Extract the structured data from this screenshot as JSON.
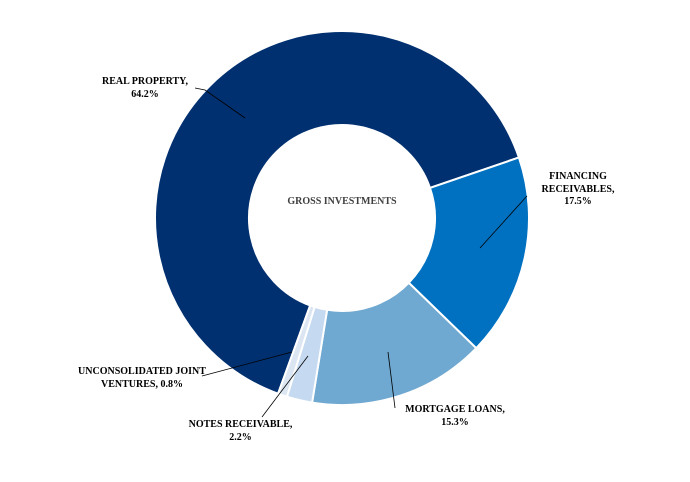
{
  "chart_data": {
    "type": "donut",
    "center_label": "GROSS INVESTMENTS",
    "categories": [
      "REAL PROPERTY,",
      "FINANCING RECEIVABLES,",
      "MORTGAGE LOANS,",
      "NOTES RECEIVABLE,",
      "UNCONSOLIDATED JOINT VENTURES,"
    ],
    "values": [
      64.2,
      17.5,
      15.3,
      2.2,
      0.8
    ],
    "value_labels": [
      "64.2%",
      "17.5%",
      "15.3%",
      "2.2%",
      "0.8%"
    ],
    "colors": [
      "#003070",
      "#0070c0",
      "#6fa8d0",
      "#c5d9f1",
      "#dce6f2"
    ]
  }
}
